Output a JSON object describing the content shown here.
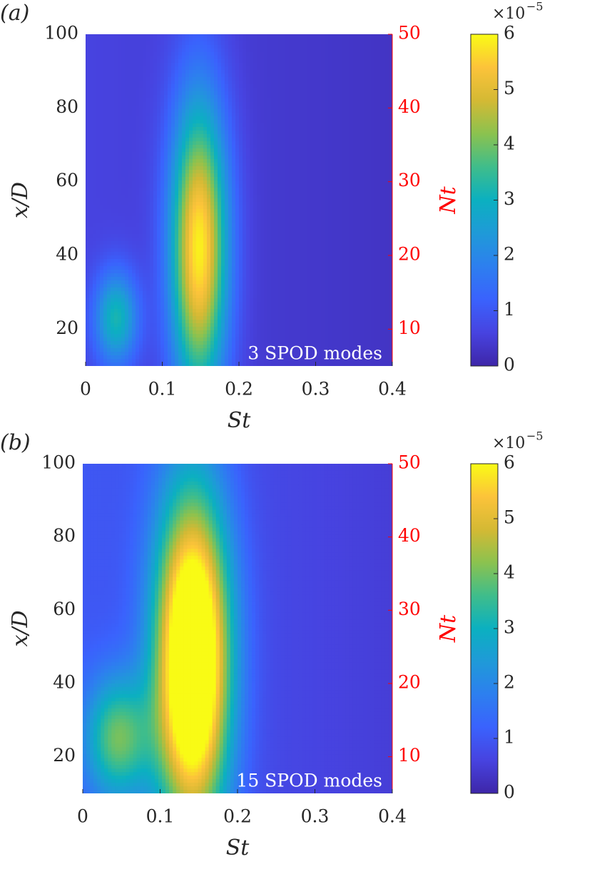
{
  "chart_data": [
    {
      "type": "heatmap",
      "panel_label": "(a)",
      "annotation": "3 SPOD modes",
      "xlabel": "St",
      "ylabel": "x/D",
      "y2label": "Nt",
      "xlim": [
        0,
        0.4
      ],
      "ylim": [
        10,
        100
      ],
      "y2lim": [
        5,
        50
      ],
      "x_ticks": [
        "0",
        "0.1",
        "0.2",
        "0.3",
        "0.4"
      ],
      "y_ticks": [
        "20",
        "40",
        "60",
        "80",
        "100"
      ],
      "y2_ticks": [
        "10",
        "20",
        "30",
        "40",
        "50"
      ],
      "colorbar": {
        "range": [
          0,
          6
        ],
        "ticks": [
          "0",
          "1",
          "2",
          "3",
          "4",
          "5",
          "6"
        ],
        "exponent_label": "×10",
        "exponent": "−5"
      },
      "peaks": [
        {
          "st": 0.148,
          "xd": 42,
          "peak_value": 5.4,
          "st_width": 0.026,
          "xd_height": 28
        },
        {
          "st": 0.04,
          "xd": 23,
          "peak_value": 2.6,
          "st_width": 0.02,
          "xd_height": 9
        }
      ],
      "background_level": 0.6
    },
    {
      "type": "heatmap",
      "panel_label": "(b)",
      "annotation": "15 SPOD modes",
      "xlabel": "St",
      "ylabel": "x/D",
      "y2label": "Nt",
      "xlim": [
        0,
        0.4
      ],
      "ylim": [
        10,
        100
      ],
      "y2lim": [
        5,
        50
      ],
      "x_ticks": [
        "0",
        "0.1",
        "0.2",
        "0.3",
        "0.4"
      ],
      "y_ticks": [
        "20",
        "40",
        "60",
        "80",
        "100"
      ],
      "y2_ticks": [
        "10",
        "20",
        "30",
        "40",
        "50"
      ],
      "colorbar": {
        "range": [
          0,
          6
        ],
        "ticks": [
          "0",
          "1",
          "2",
          "3",
          "4",
          "5",
          "6"
        ],
        "exponent_label": "×10",
        "exponent": "−5"
      },
      "peaks": [
        {
          "st": 0.142,
          "xd": 46,
          "peak_value": 7.5,
          "st_width": 0.034,
          "xd_height": 32
        },
        {
          "st": 0.045,
          "xd": 25,
          "peak_value": 3.0,
          "st_width": 0.03,
          "xd_height": 12
        }
      ],
      "background_level": 1.0
    }
  ]
}
